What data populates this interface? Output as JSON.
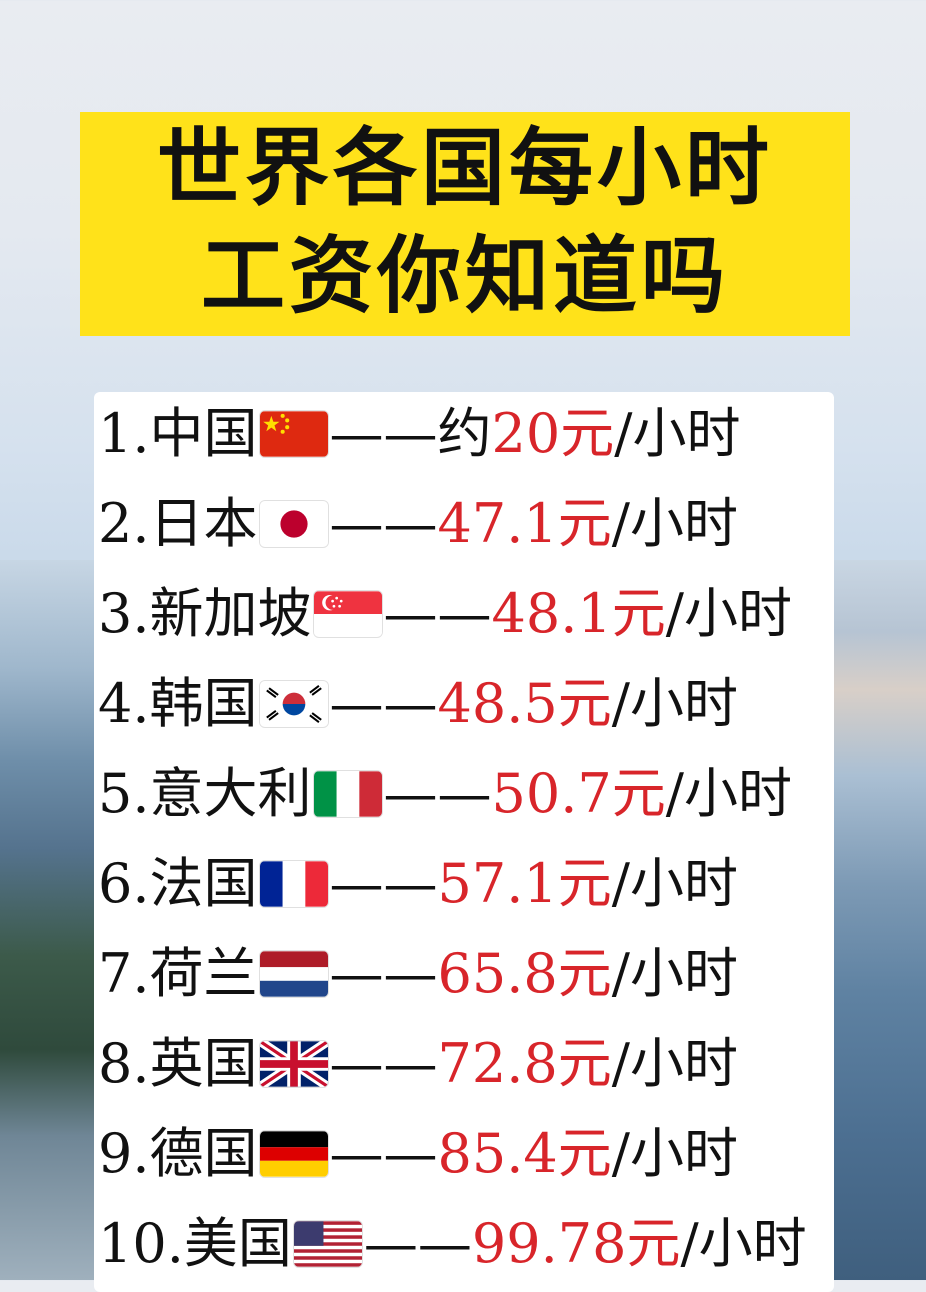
{
  "title": {
    "line1": "世界各国每小时",
    "line2": "工资你知道吗"
  },
  "rows": [
    {
      "rank": "1.",
      "country": "中国",
      "flag": "china-flag-icon",
      "dash": "——",
      "prefix": "约",
      "amount": "20元",
      "unit": "/小时"
    },
    {
      "rank": "2.",
      "country": "日本",
      "flag": "japan-flag-icon",
      "dash": "——",
      "prefix": "",
      "amount": "47.1元",
      "unit": "/小时"
    },
    {
      "rank": "3.",
      "country": "新加坡",
      "flag": "singapore-flag-icon",
      "dash": "——",
      "prefix": "",
      "amount": "48.1元",
      "unit": "/小时"
    },
    {
      "rank": "4.",
      "country": "韩国",
      "flag": "korea-flag-icon",
      "dash": "——",
      "prefix": "",
      "amount": "48.5元",
      "unit": "/小时"
    },
    {
      "rank": "5.",
      "country": "意大利",
      "flag": "italy-flag-icon",
      "dash": "——",
      "prefix": "",
      "amount": "50.7元",
      "unit": "/小时"
    },
    {
      "rank": "6.",
      "country": "法国",
      "flag": "france-flag-icon",
      "dash": "——",
      "prefix": "",
      "amount": "57.1元",
      "unit": "/小时"
    },
    {
      "rank": "7.",
      "country": "荷兰",
      "flag": "netherlands-flag-icon",
      "dash": "——",
      "prefix": "",
      "amount": "65.8元",
      "unit": "/小时"
    },
    {
      "rank": "8.",
      "country": "英国",
      "flag": "uk-flag-icon",
      "dash": "——",
      "prefix": "",
      "amount": "72.8元",
      "unit": "/小时"
    },
    {
      "rank": "9.",
      "country": "德国",
      "flag": "germany-flag-icon",
      "dash": "——",
      "prefix": "",
      "amount": "85.4元",
      "unit": "/小时"
    },
    {
      "rank": "10.",
      "country": "美国",
      "flag": "usa-flag-icon",
      "dash": "——",
      "prefix": "",
      "amount": "99.78元",
      "unit": "/小时"
    }
  ],
  "colors": {
    "title_bg": "#ffe21a",
    "amount": "#d8252a",
    "text": "#111111"
  }
}
